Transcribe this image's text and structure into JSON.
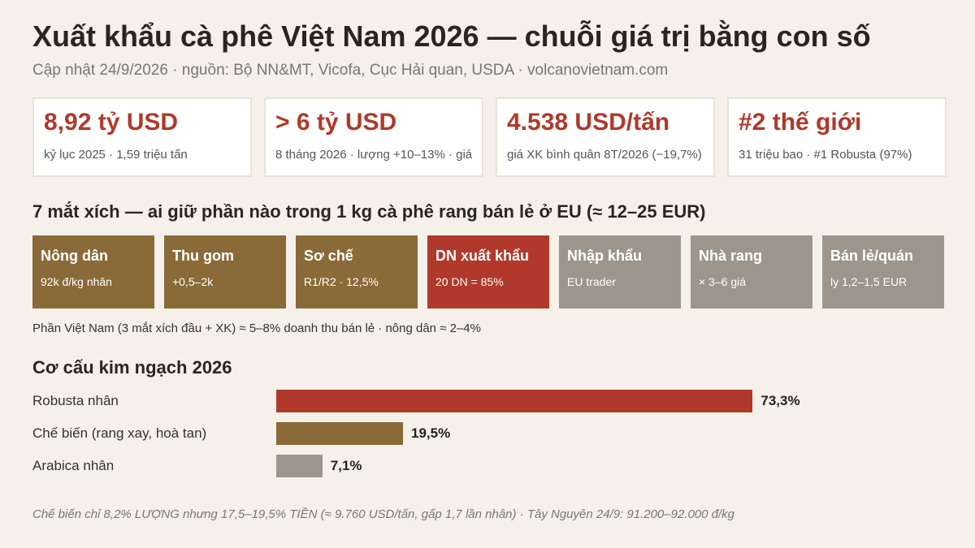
{
  "header": {
    "title": "Xuất khẩu cà phê Việt Nam 2026 — chuỗi giá trị bằng con số",
    "subtitle": "Cập nhật 24/9/2026 · nguồn: Bộ NN&MT, Vicofa, Cục Hải quan, USDA · volcanovietnam.com"
  },
  "kpis": [
    {
      "value": "8,92 tỷ USD",
      "note": "kỷ lục 2025 · 1,59 triệu tấn"
    },
    {
      "value": "> 6 tỷ USD",
      "note": "8 tháng 2026 · lượng +10–13% · giá"
    },
    {
      "value": "4.538 USD/tấn",
      "note": "giá XK bình quân 8T/2026 (−19,7%)"
    },
    {
      "value": "#2 thế giới",
      "note": "31 triệu bao · #1 Robusta (97%)"
    }
  ],
  "chain": {
    "title": "7 mắt xích — ai giữ phần nào trong 1 kg cà phê rang bán lẻ ở EU (≈ 12–25 EUR)",
    "links": [
      {
        "name": "Nông dân",
        "note": "92k đ/kg nhân",
        "color": "#8a6a38"
      },
      {
        "name": "Thu gom",
        "note": "+0,5–2k",
        "color": "#8a6a38"
      },
      {
        "name": "Sơ chế",
        "note": "R1/R2 · 12,5%",
        "color": "#8a6a38"
      },
      {
        "name": "DN xuất khẩu",
        "note": "20 DN = 85%",
        "color": "#b0392b"
      },
      {
        "name": "Nhập khẩu",
        "note": "EU trader",
        "color": "#9d958c"
      },
      {
        "name": "Nhà rang",
        "note": "× 3–6 giá",
        "color": "#9d958c"
      },
      {
        "name": "Bán lẻ/quán",
        "note": "ly 1,2–1,5 EUR",
        "color": "#9d958c"
      }
    ],
    "footnote": "Phần Việt Nam (3 mắt xích đầu + XK) ≈ 5–8% doanh thu bán lẻ · nông dân ≈ 2–4%"
  },
  "chart_data": {
    "type": "bar",
    "orientation": "horizontal",
    "title": "Cơ cấu kim ngạch 2026",
    "categories": [
      "Robusta nhân",
      "Chế biến (rang xay, hoà tan)",
      "Arabica nhân"
    ],
    "values": [
      73.3,
      19.5,
      7.1
    ],
    "value_labels": [
      "73,3%",
      "19,5%",
      "7,1%"
    ],
    "colors": [
      "#b0392b",
      "#8a6a38",
      "#9d958c"
    ]
  },
  "footer": "Chế biến chỉ 8,2% LƯỢNG nhưng 17,5–19,5% TIỀN (≈ 9.760 USD/tấn, gấp 1,7 lần nhân) · Tây Nguyên 24/9: 91.200–92.000 đ/kg"
}
